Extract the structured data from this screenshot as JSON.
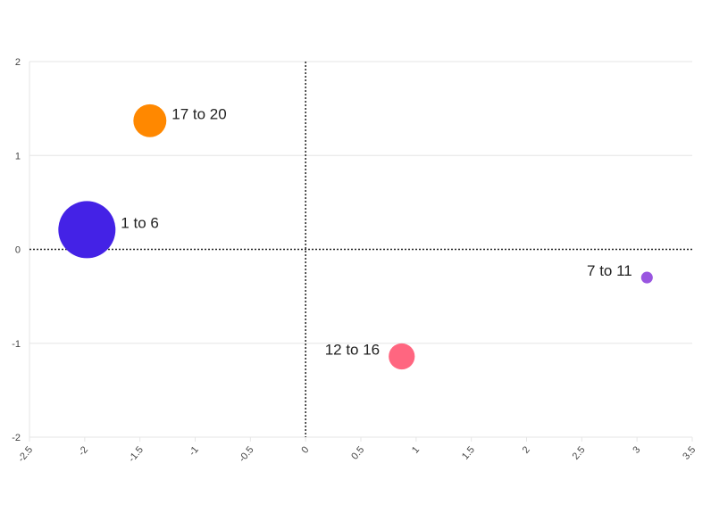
{
  "chart_data": {
    "type": "scatter",
    "title": "",
    "xlabel": "",
    "ylabel": "",
    "xlim": [
      -2.5,
      3.5
    ],
    "ylim": [
      -2,
      2
    ],
    "x_ticks": [
      -2.5,
      -2,
      -1.5,
      -1,
      -0.5,
      0,
      0.5,
      1,
      1.5,
      2,
      2.5,
      3,
      3.5
    ],
    "y_ticks": [
      -2,
      -1,
      0,
      1,
      2
    ],
    "x_tick_labels": [
      "-2.5",
      "-2",
      "-1.5",
      "-1",
      "-0.5",
      "0",
      "0.5",
      "1",
      "1.5",
      "2",
      "2.5",
      "3",
      "3.5"
    ],
    "y_tick_labels": [
      "-2",
      "-1",
      "0",
      "1",
      "2"
    ],
    "grid": true,
    "zero_lines": true,
    "points": [
      {
        "label": "17 to 20",
        "x": -1.41,
        "y": 1.37,
        "size": 4,
        "color": "#ff8800",
        "label_side": "right"
      },
      {
        "label": "1 to 6",
        "x": -1.98,
        "y": 0.21,
        "size": 12,
        "color": "#4422e6",
        "label_side": "right"
      },
      {
        "label": "7 to 11",
        "x": 3.09,
        "y": -0.3,
        "size": 0.5,
        "color": "#9955e0",
        "label_side": "left"
      },
      {
        "label": "12 to 16",
        "x": 0.87,
        "y": -1.14,
        "size": 2.5,
        "color": "#ff6680",
        "label_side": "left"
      }
    ]
  }
}
